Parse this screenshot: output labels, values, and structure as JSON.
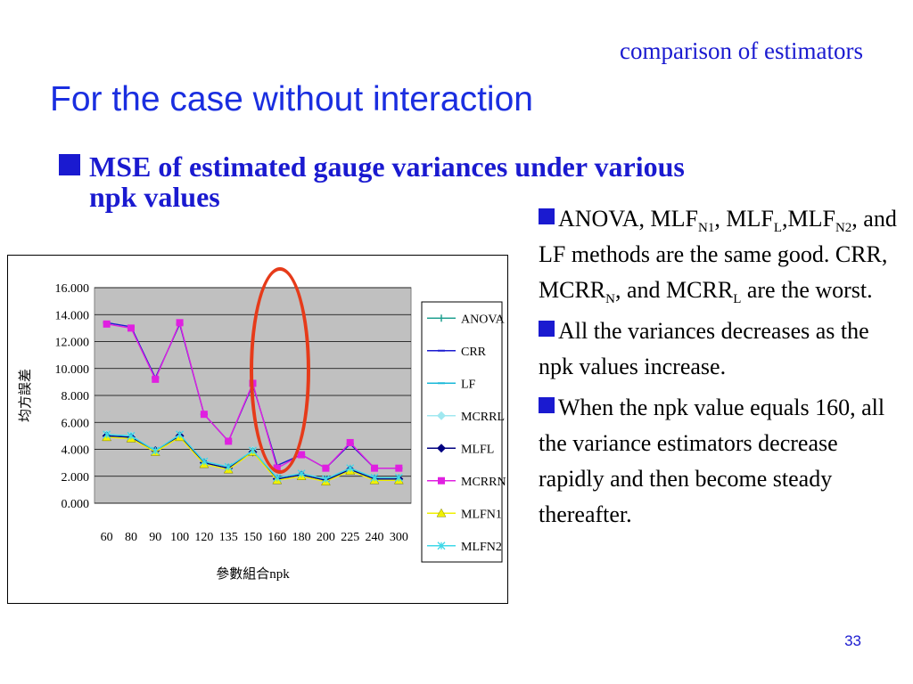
{
  "slide": {
    "subtitle": "comparison of estimators",
    "title": "For the case without interaction",
    "bullet_line1": "MSE of estimated gauge variances under various",
    "bullet_line2": "npk values",
    "page_number": "33"
  },
  "notes": [
    {
      "parts": [
        [
          "ANOVA, MLF",
          ""
        ],
        [
          "N1",
          "sub"
        ],
        [
          ", MLF",
          ""
        ],
        [
          "L",
          "sub"
        ],
        [
          ",",
          ""
        ],
        [
          "MLF",
          ""
        ],
        [
          "N2",
          "sub"
        ],
        [
          ", and LF methods are the same good. CRR, MCRR",
          ""
        ],
        [
          "N",
          "sub"
        ],
        [
          ", and MCRR",
          ""
        ],
        [
          "L",
          "sub"
        ],
        [
          " are the worst.",
          ""
        ]
      ]
    },
    {
      "parts": [
        [
          "All the variances decreases as the npk values increase.",
          ""
        ]
      ]
    },
    {
      "parts": [
        [
          "When  the npk value equals 160, all the variance estimators decrease rapidly and then become steady thereafter.",
          ""
        ]
      ]
    }
  ],
  "colors": {
    "title": "#1a2ee0",
    "plot_bg": "#c0c0c0",
    "highlight_ellipse": "#e63b1a"
  },
  "chart_data": {
    "type": "line",
    "ylabel": "均方誤差",
    "xlabel": "參數組合npk",
    "categories": [
      "60",
      "80",
      "90",
      "100",
      "120",
      "135",
      "150",
      "160",
      "180",
      "200",
      "225",
      "240",
      "300"
    ],
    "ylim": [
      0,
      16
    ],
    "yticks": [
      "0.000",
      "2.000",
      "4.000",
      "6.000",
      "8.000",
      "10.000",
      "12.000",
      "14.000",
      "16.000"
    ],
    "grid": true,
    "legend_position": "right",
    "series": [
      {
        "name": "ANOVA",
        "color": "#20a090",
        "marker": "plus",
        "values": [
          5.0,
          4.9,
          3.9,
          5.0,
          3.0,
          2.6,
          3.8,
          1.8,
          2.1,
          1.7,
          2.5,
          1.8,
          1.8
        ]
      },
      {
        "name": "CRR",
        "color": "#1a1ad0",
        "marker": "dash",
        "values": [
          13.4,
          13.1,
          9.3,
          13.3,
          6.6,
          4.6,
          8.8,
          2.8,
          3.6,
          2.6,
          4.4,
          2.6,
          2.6
        ]
      },
      {
        "name": "LF",
        "color": "#18b8d8",
        "marker": "dash",
        "values": [
          5.0,
          4.9,
          3.9,
          5.0,
          3.0,
          2.6,
          3.8,
          1.8,
          2.1,
          1.7,
          2.5,
          1.8,
          1.8
        ]
      },
      {
        "name": "MCRRL",
        "color": "#a0e8f0",
        "marker": "diamond",
        "values": [
          5.1,
          5.0,
          3.9,
          5.0,
          3.0,
          2.6,
          3.9,
          1.8,
          2.1,
          1.7,
          2.5,
          1.8,
          1.8
        ]
      },
      {
        "name": "MLFL",
        "color": "#000080",
        "marker": "diamond",
        "values": [
          5.0,
          4.9,
          3.9,
          5.0,
          3.0,
          2.6,
          3.8,
          1.8,
          2.1,
          1.7,
          2.5,
          1.8,
          1.8
        ]
      },
      {
        "name": "MCRRN",
        "color": "#e020e0",
        "marker": "square",
        "values": [
          13.3,
          13.0,
          9.2,
          13.4,
          6.6,
          4.6,
          8.9,
          2.6,
          3.6,
          2.6,
          4.5,
          2.6,
          2.6
        ]
      },
      {
        "name": "MLFN1",
        "color": "#f0f000",
        "marker": "triangle",
        "values": [
          4.9,
          4.8,
          3.8,
          4.9,
          2.9,
          2.5,
          3.8,
          1.7,
          2.0,
          1.6,
          2.4,
          1.7,
          1.7
        ]
      },
      {
        "name": "MLFN2",
        "color": "#40d8e8",
        "marker": "star",
        "values": [
          5.1,
          5.0,
          3.9,
          5.1,
          3.1,
          2.7,
          3.9,
          1.9,
          2.2,
          1.8,
          2.6,
          1.9,
          1.9
        ]
      }
    ]
  }
}
